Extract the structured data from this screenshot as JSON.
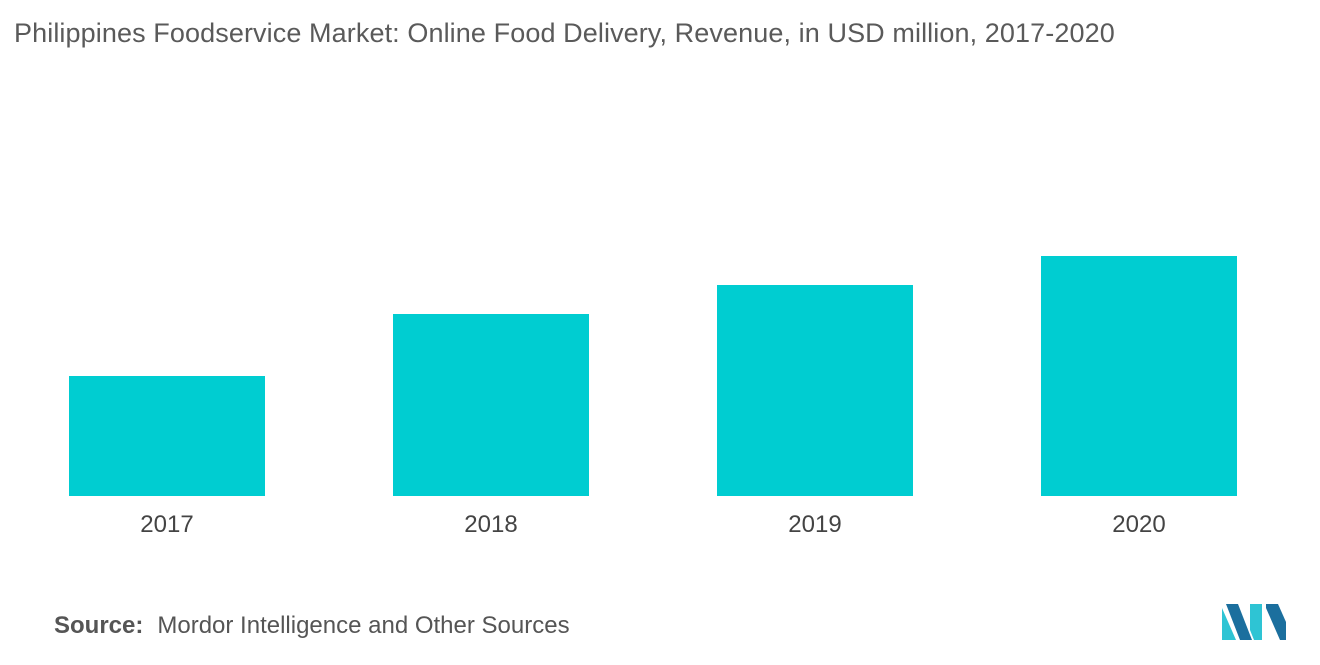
{
  "title": "Philippines Foodservice Market: Online Food Delivery, Revenue, in USD million, 2017-2020",
  "source": {
    "label": "Source:",
    "text": "Mordor Intelligence and Other Sources"
  },
  "colors": {
    "bar": "#00cdd1",
    "logo_dark": "#1b6f9e",
    "logo_light": "#2ec4d4"
  },
  "logo_icon": "mordor-intelligence-logo",
  "chart_data": {
    "type": "bar",
    "title": "Philippines Foodservice Market: Online Food Delivery, Revenue, in USD million, 2017-2020",
    "categories": [
      "2017",
      "2018",
      "2019",
      "2020"
    ],
    "values": [
      120,
      182,
      211,
      240
    ],
    "ylim": [
      0,
      380
    ],
    "xlabel": "",
    "ylabel": "",
    "grid": false,
    "legend": "none"
  }
}
